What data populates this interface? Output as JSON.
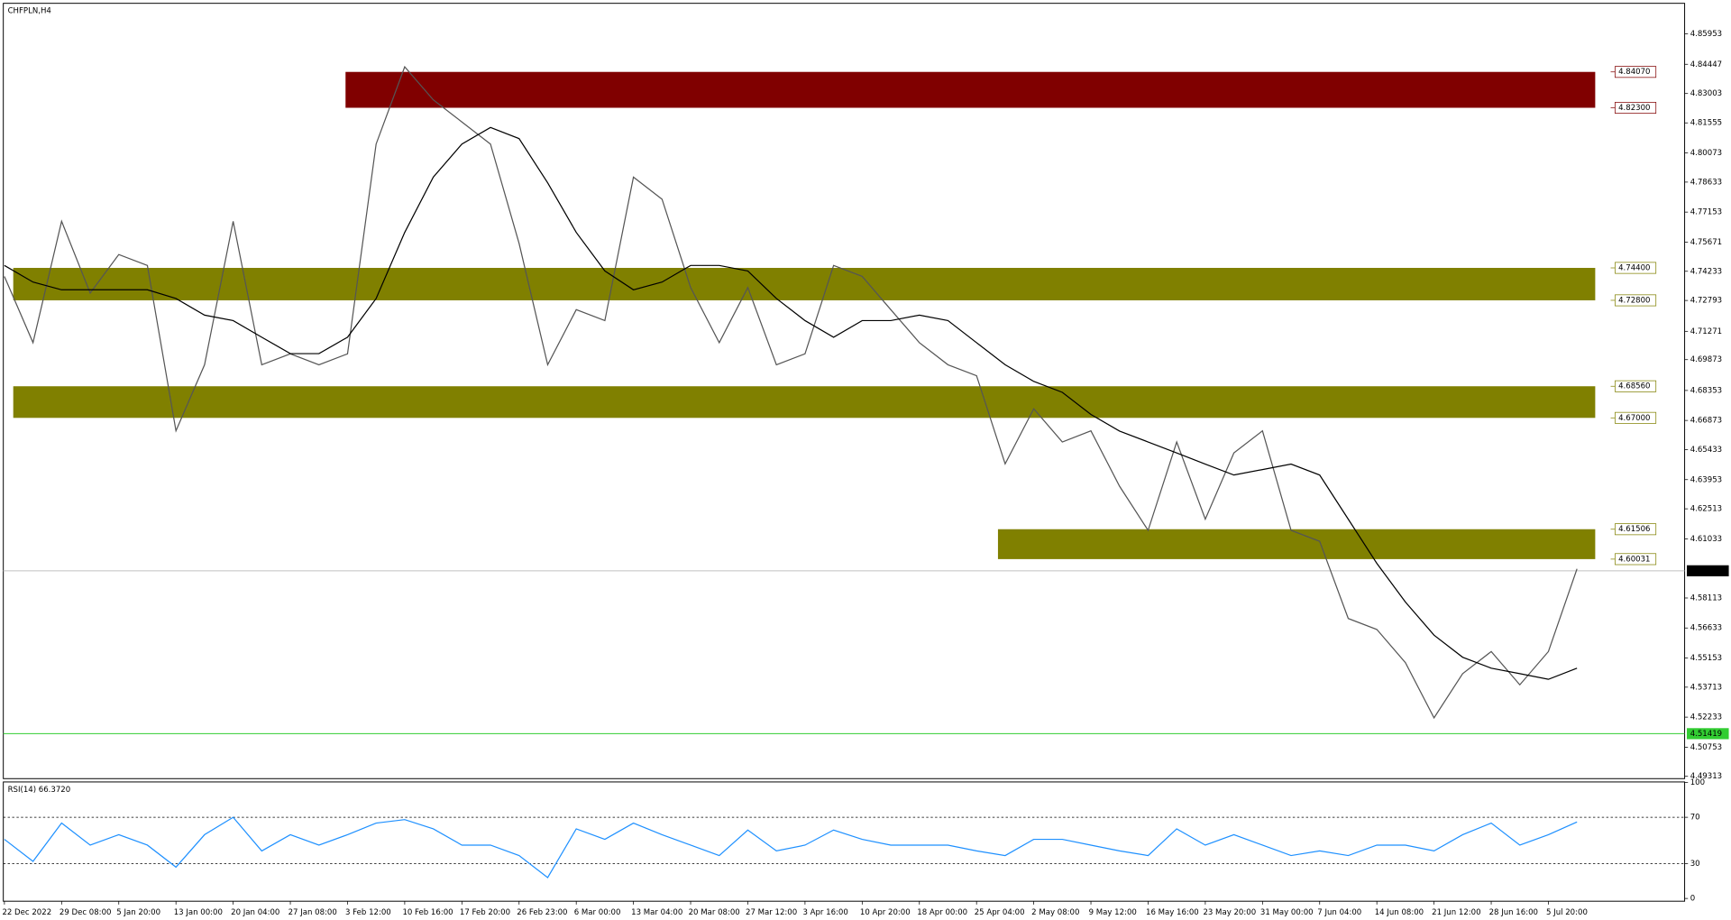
{
  "chart_data": {
    "type": "line",
    "title": "CHFPLN,H4",
    "categories": [
      "22 Dec 2022",
      null,
      "29 Dec 08:00",
      null,
      "5 Jan 20:00",
      null,
      "13 Jan 00:00",
      null,
      "20 Jan 04:00",
      null,
      "27 Jan 08:00",
      null,
      "3 Feb 12:00",
      null,
      "10 Feb 16:00",
      null,
      "17 Feb 20:00",
      null,
      "26 Feb 23:00",
      null,
      "6 Mar 00:00",
      null,
      "13 Mar 04:00",
      null,
      "20 Mar 08:00",
      null,
      "27 Mar 12:00",
      null,
      "3 Apr 16:00",
      null,
      "10 Apr 20:00",
      null,
      "18 Apr 00:00",
      null,
      "25 Apr 04:00",
      null,
      "2 May 08:00",
      null,
      "9 May 12:00",
      null,
      "16 May 16:00",
      null,
      "23 May 20:00",
      null,
      "31 May 00:00",
      null,
      "7 Jun 04:00",
      null,
      "14 Jun 08:00",
      null,
      "21 Jun 12:00",
      null,
      "28 Jun 16:00",
      null,
      "5 Jul 20:00",
      null
    ],
    "series": [
      {
        "color": "#555555",
        "values": [
          4.7398,
          4.7071,
          4.767,
          4.7316,
          4.7506,
          4.7452,
          4.6636,
          4.6962,
          4.767,
          4.6962,
          4.7016,
          4.6962,
          4.7016,
          4.8051,
          4.8432,
          4.8269,
          4.816,
          4.8051,
          4.7561,
          4.6962,
          4.7234,
          4.718,
          4.7888,
          4.7779,
          4.7343,
          4.7071,
          4.7343,
          4.6962,
          4.7016,
          4.7452,
          4.7398,
          4.7234,
          4.7071,
          4.6962,
          4.6908,
          4.6473,
          4.6745,
          4.6581,
          4.6636,
          4.6363,
          4.6145,
          4.6581,
          4.62,
          4.6527,
          4.6636,
          4.6145,
          4.6091,
          4.571,
          4.5656,
          4.5492,
          4.522,
          4.5438,
          4.5547,
          4.5383,
          4.5547,
          4.5955
        ]
      },
      {
        "color": "#000000",
        "values": [
          4.7452,
          4.737,
          4.7332,
          4.7332,
          4.7332,
          4.7332,
          4.7289,
          4.7207,
          4.718,
          4.7098,
          4.7017,
          4.7017,
          4.7098,
          4.7289,
          4.7615,
          4.7888,
          4.8051,
          4.8133,
          4.8078,
          4.786,
          4.7615,
          4.7425,
          4.7332,
          4.737,
          4.7452,
          4.7452,
          4.7425,
          4.7289,
          4.718,
          4.7098,
          4.718,
          4.718,
          4.7207,
          4.718,
          4.7071,
          4.6962,
          4.688,
          4.6826,
          4.6717,
          4.6635,
          4.6581,
          4.6527,
          4.6472,
          4.6418,
          4.6445,
          4.6472,
          4.6418,
          4.62,
          4.5982,
          4.5791,
          4.5628,
          4.5519,
          4.5465,
          4.5438,
          4.541,
          4.5465
        ]
      }
    ],
    "ylim": [
      4.492,
      4.874
    ],
    "yticks": [
      4.85953,
      4.84447,
      4.83003,
      4.81555,
      4.80073,
      4.78633,
      4.77153,
      4.75671,
      4.74233,
      4.72793,
      4.71271,
      4.69873,
      4.68353,
      4.66873,
      4.65433,
      4.63953,
      4.62513,
      4.61033,
      4.58113,
      4.56633,
      4.55153,
      4.53713,
      4.52233,
      4.50753,
      4.49313
    ],
    "zones": [
      {
        "color": "#800000",
        "high": {
          "value": 4.8407,
          "label": "4.84070"
        },
        "low": {
          "value": 4.823,
          "label": "4.82300"
        }
      },
      {
        "color": "#808000",
        "high": {
          "value": 4.744,
          "label": "4.74400"
        },
        "low": {
          "value": 4.728,
          "label": "4.72800"
        }
      },
      {
        "color": "#808000",
        "high": {
          "value": 4.6856,
          "label": "4.68560"
        },
        "low": {
          "value": 4.67,
          "label": "4.67000"
        }
      },
      {
        "color": "#808000",
        "high": 4.61506,
        "low": 4.60031
      }
    ],
    "current_price": 4.59455,
    "level_line": {
      "value": 4.51419,
      "color": "#32cd32"
    },
    "indicator": {
      "type": "line",
      "title": "RSI(14) 66.3720",
      "color": "#1e90ff",
      "values": [
        51,
        32,
        65,
        46,
        55,
        46,
        27,
        55,
        70,
        41,
        55,
        46,
        55,
        65,
        68,
        60,
        46,
        46,
        37,
        18,
        60,
        51,
        65,
        55,
        46,
        37,
        59,
        41,
        46,
        59,
        51,
        46,
        46,
        46,
        41,
        37,
        51,
        51,
        46,
        41,
        37,
        60,
        46,
        55,
        46,
        37,
        41,
        37,
        46,
        46,
        41,
        55,
        65,
        46,
        55,
        66
      ],
      "ylim": [
        0,
        100
      ],
      "yticks": [
        100,
        70,
        30,
        0
      ],
      "levels": [
        70,
        30
      ]
    }
  }
}
